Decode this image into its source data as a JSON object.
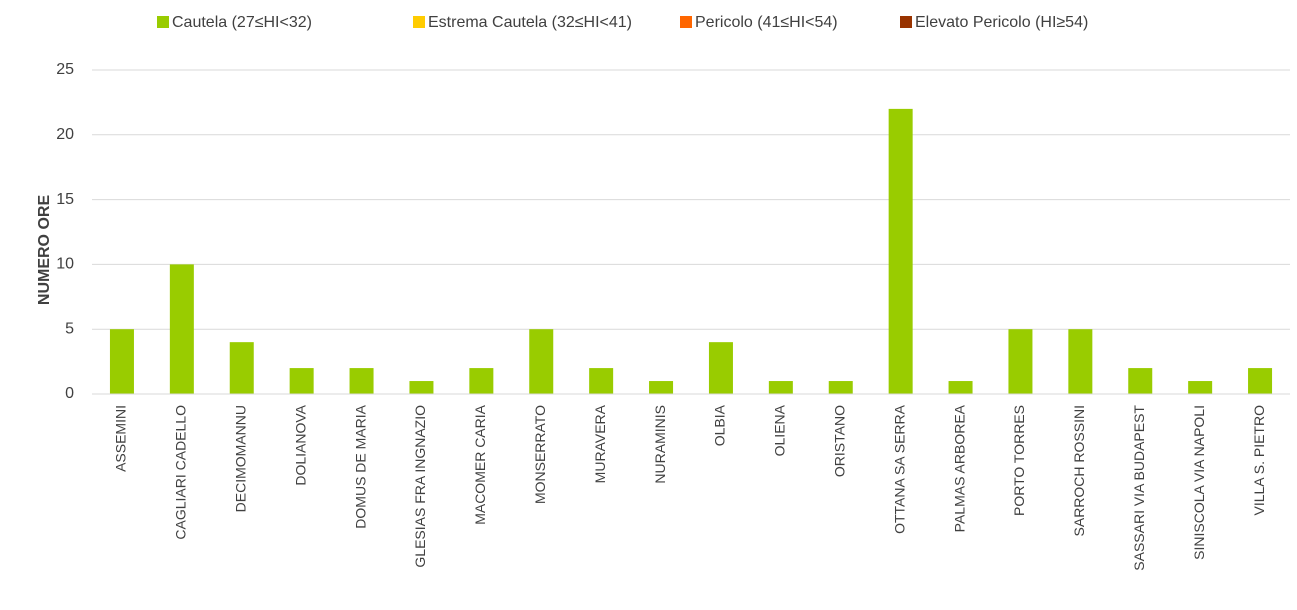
{
  "chart_data": {
    "type": "bar",
    "stacked": true,
    "y_label": "NUMERO ORE",
    "categories": [
      "ASSEMINI",
      "CAGLIARI CADELLO",
      "DECIMOMANNU",
      "DOLIANOVA",
      "DOMUS DE MARIA",
      "GLESIAS FRA INGNAZIO",
      "MACOMER CARIA",
      "MONSERRATO",
      "MURAVERA",
      "NURAMINIS",
      "OLBIA",
      "OLIENA",
      "ORISTANO",
      "OTTANA SA SERRA",
      "PALMAS ARBOREA",
      "PORTO TORRES",
      "SARROCH ROSSINI",
      "SASSARI VIA BUDAPEST",
      "SINISCOLA VIA NAPOLI",
      "VILLA S. PIETRO"
    ],
    "series": [
      {
        "name": "Cautela (27≤HI<32)",
        "color": "#99cc00",
        "values": [
          5,
          10,
          4,
          2,
          2,
          1,
          2,
          5,
          2,
          1,
          4,
          1,
          1,
          22,
          1,
          5,
          5,
          2,
          1,
          2
        ]
      },
      {
        "name": "Estrema Cautela (32≤HI<41)",
        "color": "#ffcc00",
        "values": [
          0,
          0,
          0,
          0,
          0,
          0,
          0,
          0,
          0,
          0,
          0,
          0,
          0,
          0,
          0,
          0,
          0,
          0,
          0,
          0
        ]
      },
      {
        "name": "Pericolo (41≤HI<54)",
        "color": "#ff6600",
        "values": [
          0,
          0,
          0,
          0,
          0,
          0,
          0,
          0,
          0,
          0,
          0,
          0,
          0,
          0,
          0,
          0,
          0,
          0,
          0,
          0
        ]
      },
      {
        "name": "Elevato Pericolo (HI≥54)",
        "color": "#993300",
        "values": [
          0,
          0,
          0,
          0,
          0,
          0,
          0,
          0,
          0,
          0,
          0,
          0,
          0,
          0,
          0,
          0,
          0,
          0,
          0,
          0
        ]
      }
    ],
    "ylim": [
      0,
      25
    ],
    "yticks": [
      0,
      5,
      10,
      15,
      20,
      25
    ],
    "grid": true,
    "legend": "top"
  }
}
